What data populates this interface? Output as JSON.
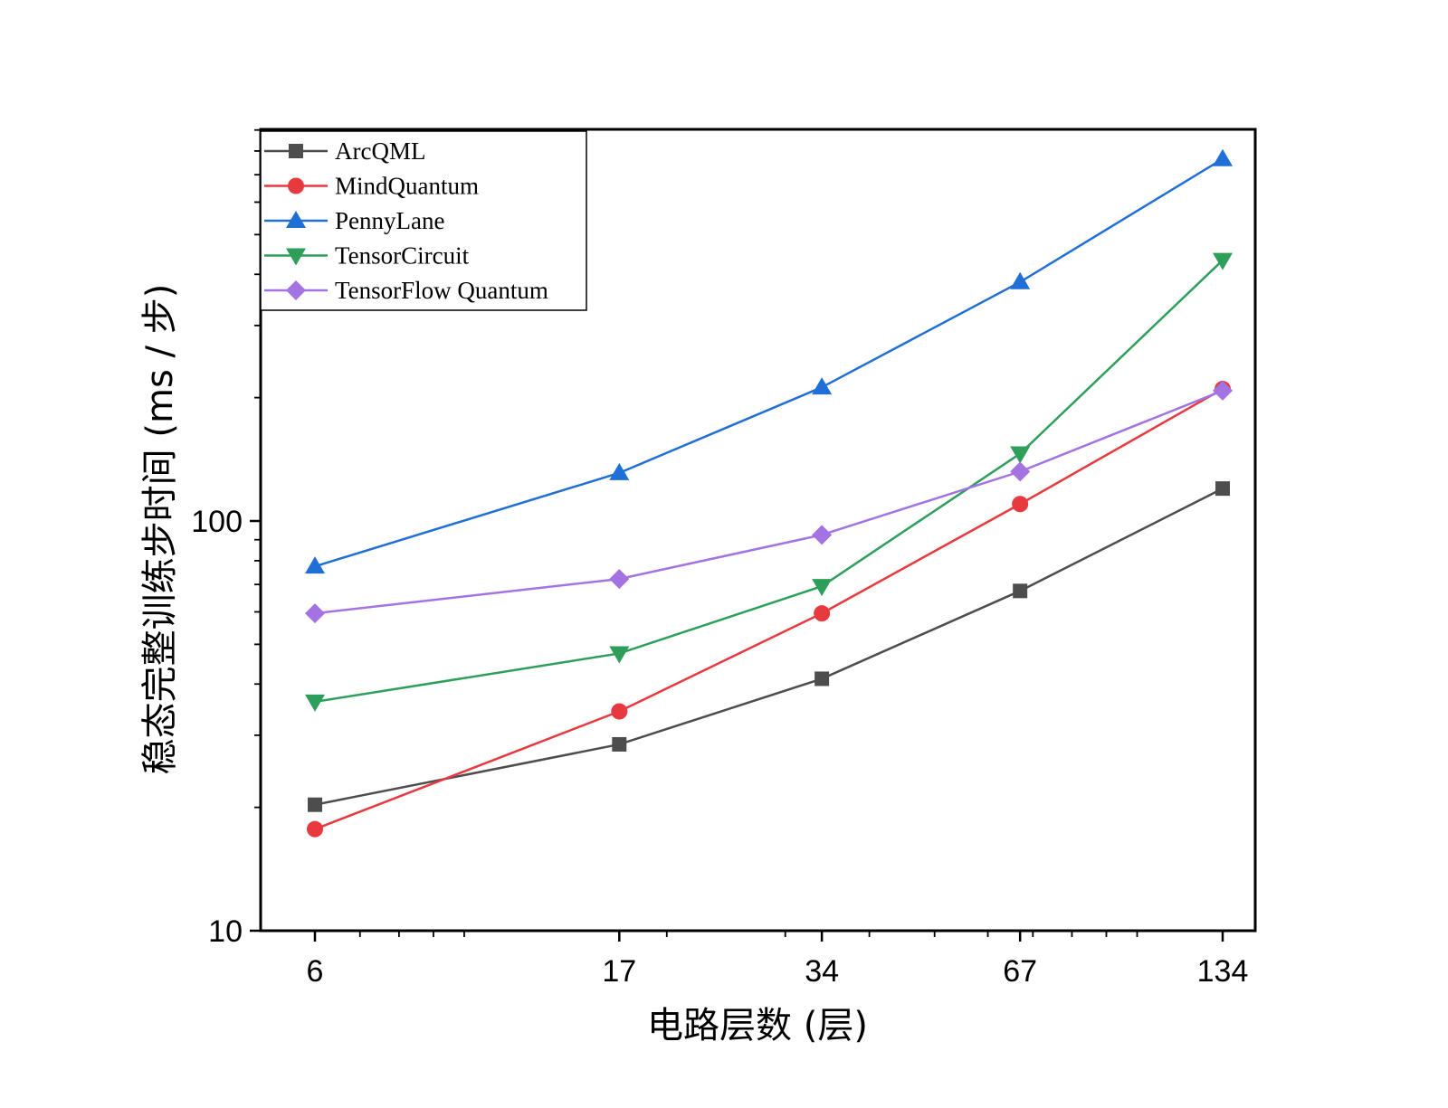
{
  "chart_data": {
    "type": "line",
    "xlabel": "电路层数 (层)",
    "ylabel": "稳态完整训练步时间 (ms / 步)",
    "x_scale": "log",
    "y_scale": "log",
    "x": [
      6,
      17,
      34,
      67,
      134
    ],
    "x_tick_labels": [
      "6",
      "17",
      "34",
      "67",
      "134"
    ],
    "y_tick_labels": [
      "10",
      "100"
    ],
    "ylim": [
      10,
      1000
    ],
    "grid": false,
    "legend_position": "top-left",
    "series": [
      {
        "name": "ArcQML",
        "color": "#4d4d4d",
        "marker": "square",
        "values": [
          20.3,
          28.5,
          41.2,
          67.5,
          120
        ]
      },
      {
        "name": "MindQuantum",
        "color": "#e8393f",
        "marker": "circle",
        "values": [
          17.7,
          34.3,
          59.5,
          110,
          210
        ]
      },
      {
        "name": "PennyLane",
        "color": "#1f6fd6",
        "marker": "triangle-up",
        "values": [
          77.5,
          131,
          212,
          383,
          765
        ]
      },
      {
        "name": "TensorCircuit",
        "color": "#2e9e5b",
        "marker": "triangle-down",
        "values": [
          36.2,
          47.5,
          69.3,
          146,
          433
        ]
      },
      {
        "name": "TensorFlow Quantum",
        "color": "#a372e3",
        "marker": "diamond",
        "values": [
          59.5,
          72.2,
          92.5,
          132,
          208
        ]
      }
    ]
  }
}
